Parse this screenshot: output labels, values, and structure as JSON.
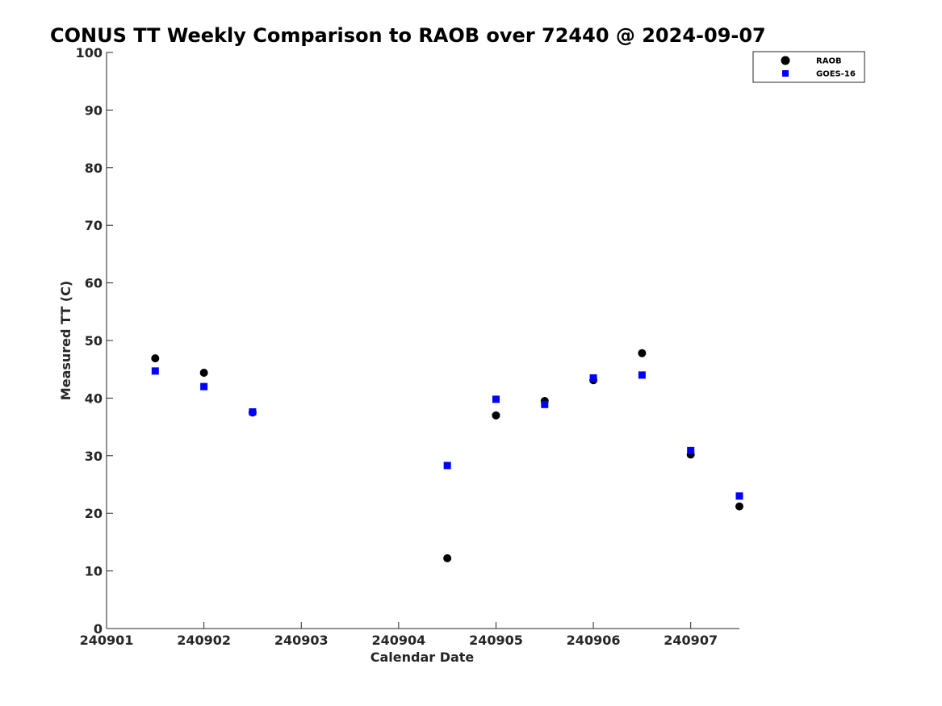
{
  "chart_data": {
    "type": "scatter",
    "title": "CONUS TT Weekly Comparison to RAOB over 72440 @ 2024-09-07",
    "xlabel": "Calendar Date",
    "ylabel": "Measured TT (C)",
    "xlim": [
      240901,
      240907.5
    ],
    "ylim": [
      0,
      100
    ],
    "xticks": [
      240901,
      240902,
      240903,
      240904,
      240905,
      240906,
      240907
    ],
    "xtick_labels": [
      "240901",
      "240902",
      "240903",
      "240904",
      "240905",
      "240906",
      "240907"
    ],
    "yticks": [
      0,
      10,
      20,
      30,
      40,
      50,
      60,
      70,
      80,
      90,
      100
    ],
    "ytick_labels": [
      "0",
      "10",
      "20",
      "30",
      "40",
      "50",
      "60",
      "70",
      "80",
      "90",
      "100"
    ],
    "grid": false,
    "legend_position": "top-right",
    "series": [
      {
        "name": "RAOB",
        "marker": "circle",
        "color": "#000000",
        "x": [
          240901.5,
          240902,
          240902.5,
          240904.5,
          240905,
          240905.5,
          240906,
          240906.5,
          240907,
          240907.5
        ],
        "y": [
          46.9,
          44.4,
          37.5,
          12.2,
          37.0,
          39.5,
          43.1,
          47.8,
          30.2,
          21.2
        ]
      },
      {
        "name": "GOES-16",
        "marker": "square",
        "color": "#0000ff",
        "x": [
          240901.5,
          240902,
          240902.5,
          240904.5,
          240905,
          240905.5,
          240906,
          240906.5,
          240907,
          240907.5
        ],
        "y": [
          44.7,
          42.0,
          37.6,
          28.3,
          39.8,
          38.9,
          43.5,
          44.0,
          30.9,
          23.0
        ]
      }
    ]
  }
}
